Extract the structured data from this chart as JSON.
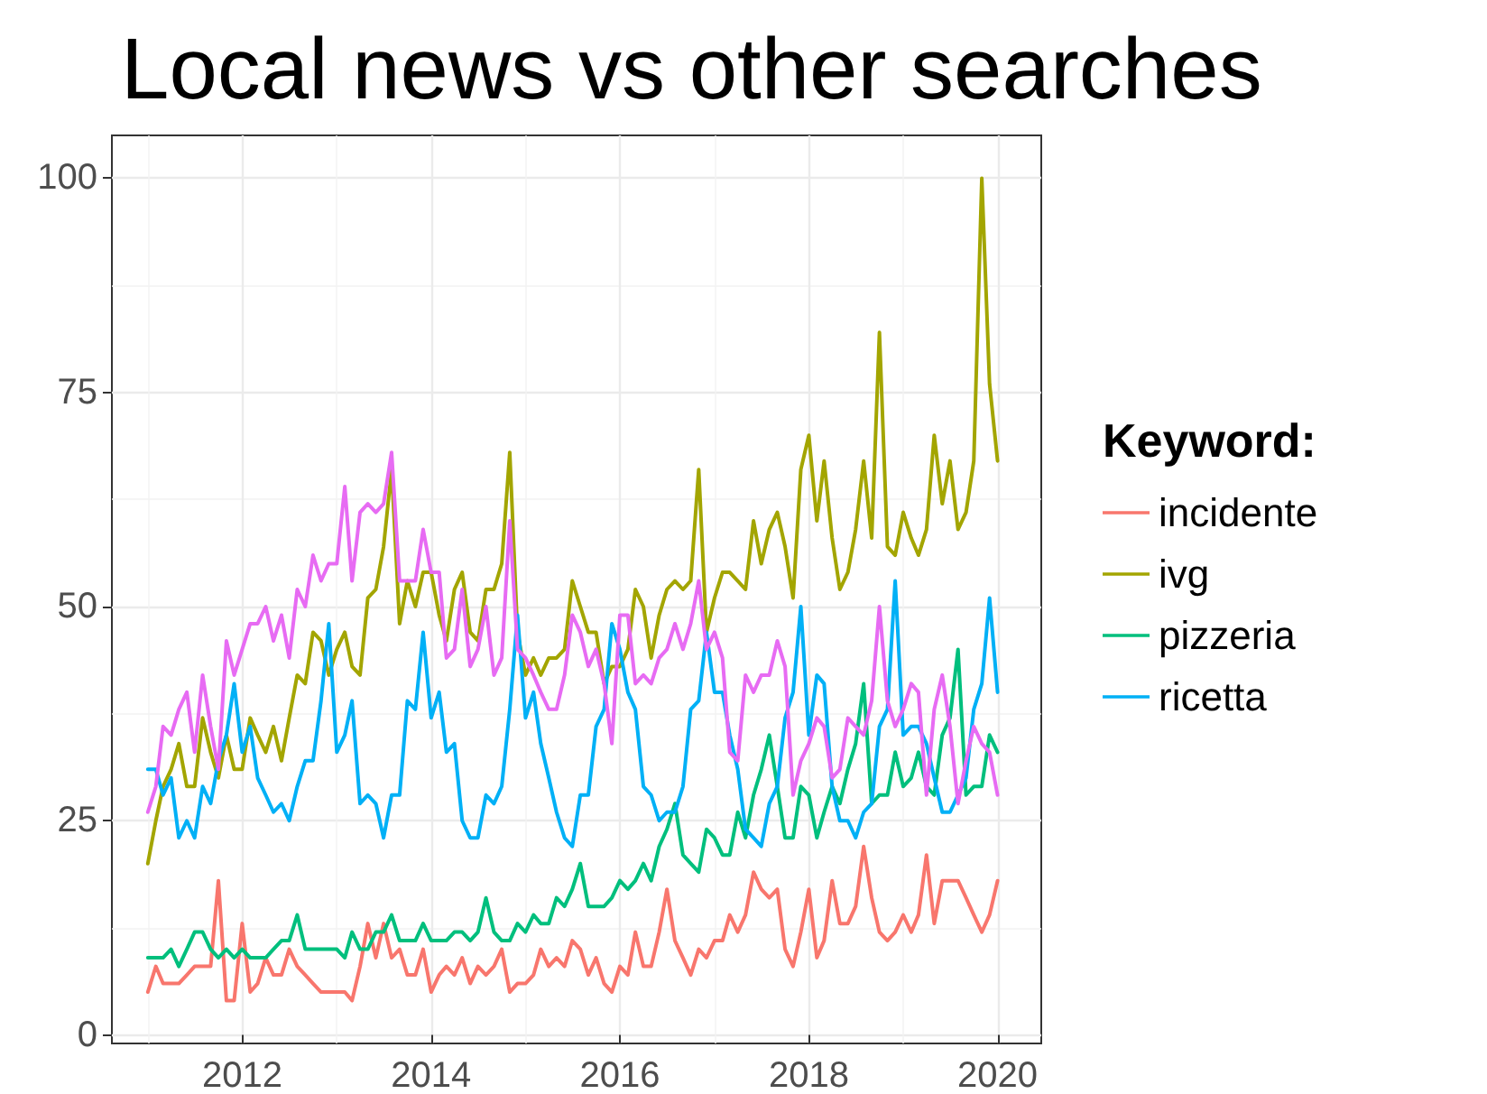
{
  "chart_data": {
    "type": "line",
    "title": "Local news vs other searches",
    "legend_title": "Keyword:",
    "legend": "right",
    "grid": true,
    "marker": "none",
    "line_style": "solid",
    "x": [
      "2011-01",
      "2011-02",
      "2011-03",
      "2011-04",
      "2011-05",
      "2011-06",
      "2011-07",
      "2011-08",
      "2011-09",
      "2011-10",
      "2011-11",
      "2011-12",
      "2012-01",
      "2012-02",
      "2012-03",
      "2012-04",
      "2012-05",
      "2012-06",
      "2012-07",
      "2012-08",
      "2012-09",
      "2012-10",
      "2012-11",
      "2012-12",
      "2013-01",
      "2013-02",
      "2013-03",
      "2013-04",
      "2013-05",
      "2013-06",
      "2013-07",
      "2013-08",
      "2013-09",
      "2013-10",
      "2013-11",
      "2013-12",
      "2014-01",
      "2014-02",
      "2014-03",
      "2014-04",
      "2014-05",
      "2014-06",
      "2014-07",
      "2014-08",
      "2014-09",
      "2014-10",
      "2014-11",
      "2014-12",
      "2015-01",
      "2015-02",
      "2015-03",
      "2015-04",
      "2015-05",
      "2015-06",
      "2015-07",
      "2015-08",
      "2015-09",
      "2015-10",
      "2015-11",
      "2015-12",
      "2016-01",
      "2016-02",
      "2016-03",
      "2016-04",
      "2016-05",
      "2016-06",
      "2016-07",
      "2016-08",
      "2016-09",
      "2016-10",
      "2016-11",
      "2016-12",
      "2017-01",
      "2017-02",
      "2017-03",
      "2017-04",
      "2017-05",
      "2017-06",
      "2017-07",
      "2017-08",
      "2017-09",
      "2017-10",
      "2017-11",
      "2017-12",
      "2018-01",
      "2018-02",
      "2018-03",
      "2018-04",
      "2018-05",
      "2018-06",
      "2018-07",
      "2018-08",
      "2018-09",
      "2018-10",
      "2018-11",
      "2018-12",
      "2019-01",
      "2019-02",
      "2019-03",
      "2019-04",
      "2019-05",
      "2019-06",
      "2019-07",
      "2019-08",
      "2019-09",
      "2019-10",
      "2019-11",
      "2019-12",
      "2020-01"
    ],
    "series": [
      {
        "name": "incidente",
        "color": "#f8766d",
        "values": [
          5,
          8,
          6,
          6,
          6,
          7,
          8,
          8,
          8,
          18,
          4,
          4,
          13,
          5,
          6,
          9,
          7,
          7,
          10,
          8,
          7,
          6,
          5,
          5,
          5,
          5,
          4,
          8,
          13,
          9,
          13,
          9,
          10,
          7,
          7,
          10,
          5,
          7,
          8,
          7,
          9,
          6,
          8,
          7,
          8,
          10,
          5,
          6,
          6,
          7,
          10,
          8,
          9,
          8,
          11,
          10,
          7,
          9,
          6,
          5,
          8,
          7,
          12,
          8,
          8,
          12,
          17,
          11,
          9,
          7,
          10,
          9,
          11,
          11,
          14,
          12,
          14,
          19,
          17,
          16,
          17,
          10,
          8,
          12,
          17,
          9,
          11,
          18,
          13,
          13,
          15,
          22,
          16,
          12,
          11,
          12,
          14,
          12,
          14,
          21,
          13,
          18,
          18,
          18,
          16,
          14,
          12,
          14,
          18
        ]
      },
      {
        "name": "ivg",
        "color": "#a3a500",
        "values": [
          20,
          25,
          29,
          31,
          34,
          29,
          29,
          37,
          33,
          30,
          35,
          31,
          31,
          37,
          35,
          33,
          36,
          32,
          37,
          42,
          41,
          47,
          46,
          42,
          45,
          47,
          43,
          42,
          51,
          52,
          57,
          66,
          48,
          53,
          50,
          54,
          54,
          49,
          46,
          52,
          54,
          47,
          46,
          52,
          52,
          55,
          68,
          47,
          42,
          44,
          42,
          44,
          44,
          45,
          53,
          50,
          47,
          47,
          41,
          43,
          43,
          45,
          52,
          50,
          44,
          49,
          52,
          53,
          52,
          53,
          66,
          47,
          51,
          54,
          54,
          53,
          52,
          60,
          55,
          59,
          61,
          57,
          51,
          66,
          70,
          60,
          67,
          58,
          52,
          54,
          59,
          67,
          58,
          82,
          57,
          56,
          61,
          58,
          56,
          59,
          70,
          62,
          67,
          59,
          61,
          67,
          100,
          76,
          67
        ]
      },
      {
        "name": "pizzeria",
        "color": "#00bf7d",
        "values": [
          9,
          9,
          9,
          10,
          8,
          10,
          12,
          12,
          10,
          9,
          10,
          9,
          10,
          9,
          9,
          9,
          10,
          11,
          11,
          14,
          10,
          10,
          10,
          10,
          10,
          9,
          12,
          10,
          10,
          12,
          12,
          14,
          11,
          11,
          11,
          13,
          11,
          11,
          11,
          12,
          12,
          11,
          12,
          16,
          12,
          11,
          11,
          13,
          12,
          14,
          13,
          13,
          16,
          15,
          17,
          20,
          15,
          15,
          15,
          16,
          18,
          17,
          18,
          20,
          18,
          22,
          24,
          27,
          21,
          20,
          19,
          24,
          23,
          21,
          21,
          26,
          23,
          28,
          31,
          35,
          29,
          23,
          23,
          29,
          28,
          23,
          26,
          29,
          27,
          31,
          34,
          41,
          27,
          28,
          28,
          33,
          29,
          30,
          33,
          29,
          28,
          35,
          37,
          45,
          28,
          29,
          29,
          35,
          33
        ]
      },
      {
        "name": "ricetta",
        "color": "#00b0f6",
        "values": [
          31,
          31,
          28,
          30,
          23,
          25,
          23,
          29,
          27,
          32,
          35,
          41,
          33,
          36,
          30,
          28,
          26,
          27,
          25,
          29,
          32,
          32,
          39,
          48,
          33,
          35,
          39,
          27,
          28,
          27,
          23,
          28,
          28,
          39,
          38,
          47,
          37,
          40,
          33,
          34,
          25,
          23,
          23,
          28,
          27,
          29,
          38,
          49,
          37,
          40,
          34,
          30,
          26,
          23,
          22,
          28,
          28,
          36,
          38,
          48,
          45,
          40,
          38,
          29,
          28,
          25,
          26,
          26,
          29,
          38,
          39,
          47,
          40,
          40,
          35,
          31,
          24,
          23,
          22,
          27,
          29,
          37,
          40,
          50,
          35,
          42,
          41,
          29,
          25,
          25,
          23,
          26,
          27,
          36,
          38,
          53,
          35,
          36,
          36,
          34,
          30,
          26,
          26,
          28,
          30,
          38,
          41,
          51,
          40
        ]
      },
      {
        "color": "#e76bf3",
        "values": [
          26,
          29,
          36,
          35,
          38,
          40,
          33,
          42,
          36,
          31,
          46,
          42,
          45,
          48,
          48,
          50,
          46,
          49,
          44,
          52,
          50,
          56,
          53,
          55,
          55,
          64,
          53,
          61,
          62,
          61,
          62,
          68,
          53,
          53,
          53,
          59,
          54,
          54,
          44,
          45,
          52,
          43,
          45,
          50,
          42,
          44,
          60,
          45,
          44,
          42,
          40,
          38,
          38,
          42,
          49,
          47,
          43,
          45,
          41,
          34,
          49,
          49,
          41,
          42,
          41,
          44,
          45,
          48,
          45,
          48,
          53,
          45,
          47,
          44,
          33,
          32,
          42,
          40,
          42,
          42,
          46,
          43,
          28,
          32,
          34,
          37,
          36,
          30,
          31,
          37,
          36,
          35,
          39,
          50,
          39,
          36,
          38,
          41,
          40,
          28,
          38,
          42,
          36,
          27,
          32,
          36,
          34,
          33,
          28
        ]
      }
    ],
    "xlim": [
      "2010-08-15",
      "2020-06-18"
    ],
    "xticks": [
      {
        "value": "2011",
        "label": null
      },
      "2012",
      {
        "value": "2013",
        "label": null
      },
      "2014",
      {
        "value": "2015",
        "label": null
      },
      "2016",
      {
        "value": "2017",
        "label": null
      },
      "2018",
      {
        "value": "2019",
        "label": null
      },
      "2020"
    ],
    "ylim": [
      -1,
      105
    ],
    "yticks": [
      0,
      {
        "value": 12.5,
        "label": null
      },
      25,
      {
        "value": 37.5,
        "label": null
      },
      50,
      {
        "value": 62.5,
        "label": null
      },
      75,
      {
        "value": 87.5,
        "label": null
      },
      100
    ]
  }
}
